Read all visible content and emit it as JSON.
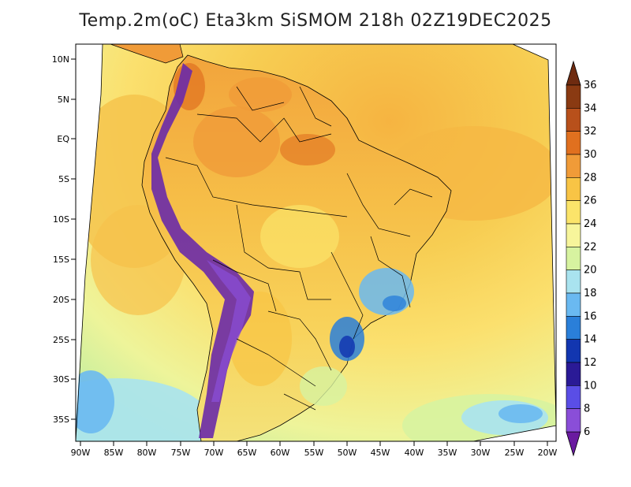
{
  "title": "Temp.2m(oC) Eta3km SiSMOM 218h 02Z19DEC2025",
  "lat_labels": [
    "10N",
    "5N",
    "EQ",
    "5S",
    "10S",
    "15S",
    "20S",
    "25S",
    "30S",
    "35S"
  ],
  "lon_labels": [
    "90W",
    "85W",
    "80W",
    "75W",
    "70W",
    "65W",
    "60W",
    "55W",
    "50W",
    "45W",
    "40W",
    "35W",
    "30W",
    "25W",
    "20W"
  ],
  "colorbar": {
    "labels": [
      "36",
      "34",
      "32",
      "30",
      "28",
      "26",
      "24",
      "22",
      "20",
      "18",
      "16",
      "14",
      "12",
      "10",
      "8",
      "6"
    ],
    "colors": [
      "#6e2b10",
      "#8a3a12",
      "#b8501b",
      "#e0701f",
      "#f09b38",
      "#f8c445",
      "#fbe46a",
      "#f7f59b",
      "#d7f3a0",
      "#a9e3ef",
      "#6ab9f1",
      "#2a7fd9",
      "#1236b0",
      "#2a1a96",
      "#5a4ee6",
      "#8a4ed8",
      "#6a1aa0"
    ]
  },
  "colors": {
    "ocean_warm": "#f6c24a",
    "ocean_mid": "#fbe06e",
    "ocean_cool": "#eef49a",
    "ocean_cold": "#a9e3ef",
    "land_hot": "#f0a03a",
    "land_warm": "#f5b844",
    "andes_cold": "#6a2aa8",
    "highlands": "#4f8de0"
  }
}
